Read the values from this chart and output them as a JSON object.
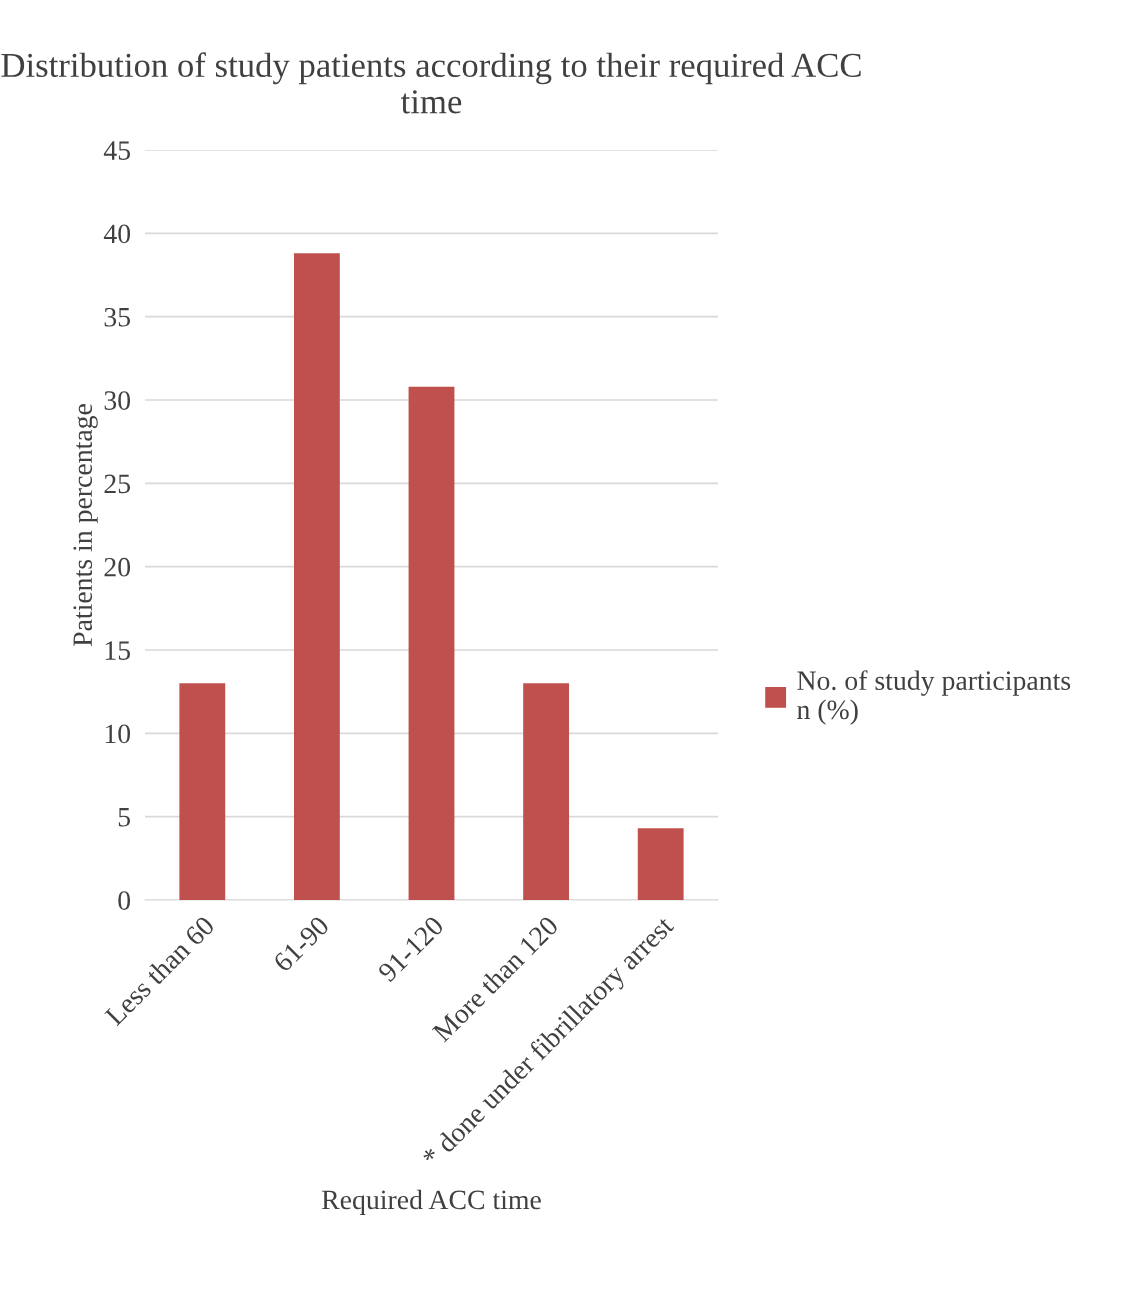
{
  "chart_data": {
    "type": "bar",
    "title": "Distribution of study patients according to their required ACC time",
    "xlabel": "Required ACC time",
    "ylabel": "Patients in percentage",
    "categories": [
      "Less than 60",
      "61-90",
      "91-120",
      "More than 120",
      "* done under fibrillatory arrest"
    ],
    "series": [
      {
        "name": "No. of study participants n (%)",
        "color": "#c0504d",
        "values": [
          13,
          38.8,
          30.8,
          13,
          4.3
        ]
      }
    ],
    "ylim": [
      0,
      45
    ],
    "yticks": [
      0,
      5,
      10,
      15,
      20,
      25,
      30,
      35,
      40,
      45
    ],
    "grid": "y",
    "legend": "right"
  }
}
